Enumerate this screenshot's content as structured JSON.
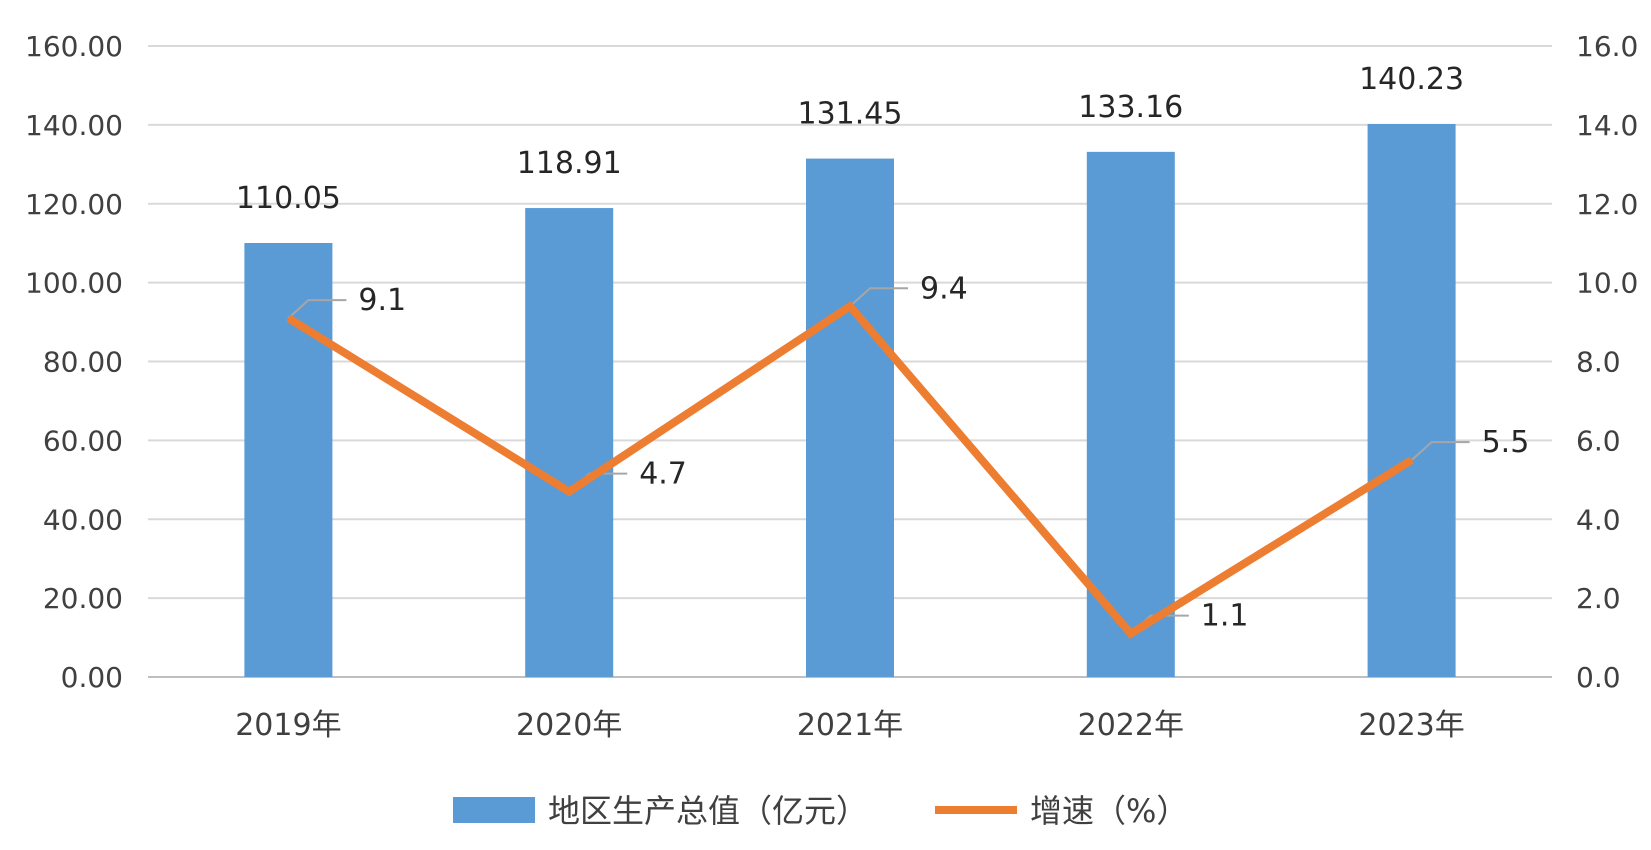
{
  "chart_data": {
    "type": "bar",
    "categories": [
      "2019年",
      "2020年",
      "2021年",
      "2022年",
      "2023年"
    ],
    "series": [
      {
        "name": "地区生产总值（亿元）",
        "type": "bar",
        "axis": "left",
        "color": "#5b9bd5",
        "values": [
          110.05,
          118.91,
          131.45,
          133.16,
          140.23
        ],
        "labels": [
          "110.05",
          "118.91",
          "131.45",
          "133.16",
          "140.23"
        ]
      },
      {
        "name": "增速（%）",
        "type": "line",
        "axis": "right",
        "color": "#ed7d31",
        "values": [
          9.1,
          4.7,
          9.4,
          1.1,
          5.5
        ],
        "labels": [
          "9.1",
          "4.7",
          "9.4",
          "1.1",
          "5.5"
        ]
      }
    ],
    "y_left": {
      "min": 0,
      "max": 160,
      "ticks": [
        "0.00",
        "20.00",
        "40.00",
        "60.00",
        "80.00",
        "100.00",
        "120.00",
        "140.00",
        "160.00"
      ]
    },
    "y_right": {
      "min": 0,
      "max": 16,
      "ticks": [
        "0.0",
        "2.0",
        "4.0",
        "6.0",
        "8.0",
        "10.0",
        "12.0",
        "14.0",
        "16.0"
      ]
    },
    "grid": true,
    "legend_position": "bottom"
  }
}
